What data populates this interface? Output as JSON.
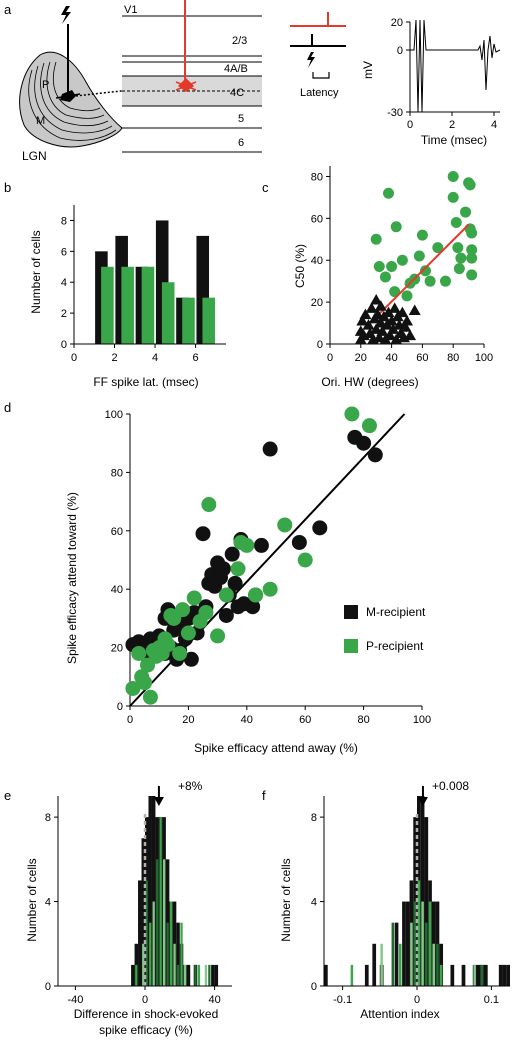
{
  "colors": {
    "black": "#111111",
    "green": "#3aa64a",
    "light_green": "#85c98a",
    "dark_green": "#1f6b30",
    "red": "#e53a2b",
    "gray_layer": "#d9d9d9",
    "lgn_fill": "#c8c8c8"
  },
  "panel_a": {
    "label": "a",
    "lgn_label": "LGN",
    "p_label": "P",
    "m_label": "M",
    "v1_label": "V1",
    "layers": [
      "2/3",
      "4A/B",
      "4C",
      "5",
      "6"
    ],
    "latency_label": "Latency",
    "lightning_icon": "lightning-bolt-icon",
    "trace": {
      "ylabel": "mV",
      "xlabel": "Time (msec)",
      "yticks": [
        "20",
        "0",
        "-30"
      ],
      "xticks": [
        "0",
        "2",
        "4"
      ]
    }
  },
  "chart_data": [
    {
      "id": "b",
      "label": "b",
      "type": "bar",
      "xlabel": "FF spike lat. (msec)",
      "ylabel": "Number of cells",
      "xlim": [
        0,
        7.5
      ],
      "ylim": [
        0,
        9
      ],
      "xticks": [
        "0",
        "2",
        "4",
        "6"
      ],
      "yticks": [
        "0",
        "2",
        "4",
        "6",
        "8"
      ],
      "categories": [
        1.5,
        2.5,
        3.5,
        4.5,
        5.5,
        6.5
      ],
      "series": [
        {
          "values": [
            6,
            7,
            5,
            8,
            3,
            7
          ],
          "color": "black"
        },
        {
          "values": [
            5,
            5,
            5,
            4,
            3,
            3
          ],
          "color": "green"
        }
      ]
    },
    {
      "id": "c",
      "label": "c",
      "type": "scatter",
      "xlabel": "Ori. HW (degrees)",
      "ylabel": "C50 (%)",
      "xlim": [
        0,
        100
      ],
      "ylim": [
        0,
        85
      ],
      "xticks": [
        "0",
        "20",
        "40",
        "60",
        "80",
        "100"
      ],
      "yticks": [
        "0",
        "20",
        "40",
        "60",
        "80"
      ],
      "triangles": [
        [
          20,
          2
        ],
        [
          20,
          6
        ],
        [
          21,
          11
        ],
        [
          22,
          4
        ],
        [
          23,
          14
        ],
        [
          25,
          9
        ],
        [
          26,
          5
        ],
        [
          27,
          17
        ],
        [
          28,
          2
        ],
        [
          29,
          12
        ],
        [
          30,
          7
        ],
        [
          30,
          21
        ],
        [
          31,
          14
        ],
        [
          32,
          3
        ],
        [
          33,
          10
        ],
        [
          33,
          18
        ],
        [
          34,
          6
        ],
        [
          35,
          13
        ],
        [
          36,
          2
        ],
        [
          37,
          9
        ],
        [
          38,
          15
        ],
        [
          39,
          4
        ],
        [
          40,
          11
        ],
        [
          41,
          7
        ],
        [
          42,
          17
        ],
        [
          43,
          2
        ],
        [
          44,
          13
        ],
        [
          45,
          9
        ],
        [
          46,
          5
        ],
        [
          47,
          15
        ],
        [
          48,
          3
        ],
        [
          49,
          8
        ],
        [
          50,
          11
        ],
        [
          52,
          4
        ],
        [
          55,
          16
        ]
      ],
      "circles": [
        [
          30,
          50
        ],
        [
          32,
          37
        ],
        [
          36,
          32
        ],
        [
          38,
          72
        ],
        [
          40,
          37
        ],
        [
          42,
          25
        ],
        [
          43,
          56
        ],
        [
          47,
          40
        ],
        [
          50,
          23
        ],
        [
          52,
          29
        ],
        [
          55,
          31
        ],
        [
          58,
          42
        ],
        [
          60,
          52
        ],
        [
          62,
          35
        ],
        [
          65,
          30
        ],
        [
          70,
          46
        ],
        [
          75,
          30
        ],
        [
          80,
          80
        ],
        [
          80,
          70
        ],
        [
          82,
          58
        ],
        [
          83,
          46
        ],
        [
          84,
          36
        ],
        [
          85,
          41
        ],
        [
          88,
          63
        ],
        [
          90,
          77
        ],
        [
          91,
          76
        ],
        [
          91,
          55
        ],
        [
          92,
          53
        ],
        [
          92,
          45
        ],
        [
          92,
          41
        ],
        [
          92,
          33
        ]
      ],
      "fit_line": [
        [
          22,
          7
        ],
        [
          90,
          57
        ]
      ]
    },
    {
      "id": "d",
      "label": "d",
      "type": "scatter",
      "xlabel": "Spike efficacy attend away (%)",
      "ylabel": "Spike efficacy attend toward (%)",
      "xlim": [
        0,
        100
      ],
      "ylim": [
        0,
        100
      ],
      "xticks": [
        "0",
        "20",
        "40",
        "60",
        "80",
        "100"
      ],
      "yticks": [
        "0",
        "20",
        "40",
        "60",
        "80",
        "100"
      ],
      "legend": [
        {
          "label": "M-recipient",
          "color": "black"
        },
        {
          "label": "P-recipient",
          "color": "green"
        }
      ],
      "legend_position": "bottom-right",
      "unity_line": [
        [
          0,
          0
        ],
        [
          94,
          100
        ]
      ],
      "series": [
        {
          "name": "M-recipient",
          "color": "black",
          "points": [
            [
              1,
              21
            ],
            [
              3,
              22
            ],
            [
              4,
              19
            ],
            [
              5,
              21
            ],
            [
              6,
              17
            ],
            [
              7,
              23
            ],
            [
              8,
              21
            ],
            [
              9,
              19
            ],
            [
              10,
              24
            ],
            [
              11,
              20
            ],
            [
              12,
              18
            ],
            [
              12,
              30
            ],
            [
              13,
              33
            ],
            [
              14,
              20
            ],
            [
              15,
              26
            ],
            [
              16,
              16
            ],
            [
              17,
              19
            ],
            [
              18,
              27
            ],
            [
              19,
              23
            ],
            [
              20,
              30
            ],
            [
              21,
              16
            ],
            [
              22,
              32
            ],
            [
              23,
              25
            ],
            [
              25,
              59
            ],
            [
              26,
              34
            ],
            [
              27,
              42
            ],
            [
              28,
              45
            ],
            [
              29,
              41
            ],
            [
              30,
              49
            ],
            [
              31,
              44
            ],
            [
              32,
              47
            ],
            [
              33,
              31
            ],
            [
              34,
              38
            ],
            [
              35,
              52
            ],
            [
              36,
              42
            ],
            [
              37,
              34
            ],
            [
              38,
              57
            ],
            [
              39,
              35
            ],
            [
              42,
              34
            ],
            [
              43,
              38
            ],
            [
              45,
              55
            ],
            [
              48,
              88
            ],
            [
              58,
              56
            ],
            [
              65,
              61
            ],
            [
              77,
              92
            ],
            [
              80,
              90
            ],
            [
              84,
              86
            ]
          ]
        },
        {
          "name": "P-recipient",
          "color": "green",
          "points": [
            [
              1,
              6
            ],
            [
              3,
              18
            ],
            [
              4,
              10
            ],
            [
              5,
              8
            ],
            [
              6,
              14
            ],
            [
              7,
              3
            ],
            [
              8,
              19
            ],
            [
              9,
              17
            ],
            [
              10,
              20
            ],
            [
              11,
              18
            ],
            [
              12,
              23
            ],
            [
              13,
              21
            ],
            [
              14,
              31
            ],
            [
              15,
              30
            ],
            [
              17,
              18
            ],
            [
              18,
              33
            ],
            [
              20,
              25
            ],
            [
              22,
              37
            ],
            [
              24,
              29
            ],
            [
              26,
              32
            ],
            [
              27,
              69
            ],
            [
              30,
              24
            ],
            [
              33,
              38
            ],
            [
              37,
              47
            ],
            [
              38,
              56
            ],
            [
              40,
              55
            ],
            [
              43,
              38
            ],
            [
              48,
              40
            ],
            [
              53,
              62
            ],
            [
              60,
              50
            ],
            [
              76,
              100
            ],
            [
              82,
              96
            ]
          ]
        }
      ]
    },
    {
      "id": "e",
      "label": "e",
      "type": "bar",
      "xlabel": "Difference in shock-evoked spike efficacy (%)",
      "xlabel_lines": [
        "Difference in shock-evoked",
        "spike efficacy (%)"
      ],
      "ylabel": "Number of cells",
      "xlim": [
        -50,
        50
      ],
      "ylim": [
        0,
        9
      ],
      "xticks": [
        "-40",
        "0",
        "40"
      ],
      "yticks": [
        "0",
        "4",
        "8"
      ],
      "annotation": "+8%",
      "mean_arrow_x": 8,
      "dashed_line_x": 0,
      "bin_width": 2,
      "black_bins": [
        [
          -8,
          1
        ],
        [
          -6,
          2
        ],
        [
          -4,
          5
        ],
        [
          -2,
          7
        ],
        [
          0,
          8
        ],
        [
          2,
          9
        ],
        [
          4,
          9
        ],
        [
          6,
          8
        ],
        [
          8,
          8
        ],
        [
          10,
          8
        ],
        [
          12,
          6
        ],
        [
          14,
          4
        ],
        [
          16,
          4
        ],
        [
          18,
          3
        ],
        [
          20,
          2
        ],
        [
          22,
          1
        ],
        [
          24,
          1
        ],
        [
          28,
          1
        ],
        [
          38,
          1
        ],
        [
          40,
          1
        ]
      ],
      "green_bins": [
        [
          -6,
          1
        ],
        [
          -2,
          2
        ],
        [
          0,
          5
        ],
        [
          2,
          3
        ],
        [
          4,
          4
        ],
        [
          6,
          6
        ],
        [
          8,
          8
        ],
        [
          10,
          6
        ],
        [
          12,
          3
        ],
        [
          14,
          4
        ],
        [
          16,
          2
        ],
        [
          18,
          1
        ],
        [
          20,
          3
        ],
        [
          22,
          1
        ],
        [
          28,
          1
        ],
        [
          30,
          1
        ],
        [
          34,
          1
        ],
        [
          36,
          1
        ]
      ]
    },
    {
      "id": "f",
      "label": "f",
      "type": "bar",
      "xlabel": "Attention index",
      "ylabel": "Number of cells",
      "xlim": [
        -0.125,
        0.125
      ],
      "ylim": [
        0,
        9
      ],
      "xticks": [
        "-0.1",
        "0",
        "0.1"
      ],
      "yticks": [
        "0",
        "4",
        "8"
      ],
      "annotation": "+0.008",
      "mean_arrow_x": 0.008,
      "dashed_line_x": 0,
      "bin_width": 0.005,
      "black_bins": [
        [
          -0.125,
          1
        ],
        [
          -0.07,
          1
        ],
        [
          -0.06,
          2
        ],
        [
          -0.05,
          1
        ],
        [
          -0.03,
          3
        ],
        [
          -0.02,
          4
        ],
        [
          -0.015,
          4
        ],
        [
          -0.01,
          5
        ],
        [
          -0.005,
          8
        ],
        [
          0,
          9
        ],
        [
          0.005,
          9
        ],
        [
          0.01,
          8
        ],
        [
          0.015,
          5
        ],
        [
          0.02,
          4
        ],
        [
          0.025,
          4
        ],
        [
          0.03,
          2
        ],
        [
          0.045,
          1
        ],
        [
          0.06,
          1
        ],
        [
          0.075,
          1
        ],
        [
          0.08,
          1
        ],
        [
          0.085,
          1
        ],
        [
          0.09,
          1
        ],
        [
          0.11,
          1
        ],
        [
          0.115,
          1
        ],
        [
          0.12,
          1
        ]
      ],
      "green_bins": [
        [
          -0.09,
          1
        ],
        [
          -0.05,
          2
        ],
        [
          -0.035,
          3
        ],
        [
          -0.025,
          2
        ],
        [
          -0.01,
          3
        ],
        [
          -0.005,
          4
        ],
        [
          0,
          5
        ],
        [
          0.005,
          4
        ],
        [
          0.01,
          3
        ],
        [
          0.015,
          4
        ],
        [
          0.02,
          2
        ],
        [
          0.025,
          2
        ],
        [
          0.03,
          1
        ],
        [
          0.075,
          1
        ],
        [
          0.085,
          1
        ]
      ]
    }
  ]
}
